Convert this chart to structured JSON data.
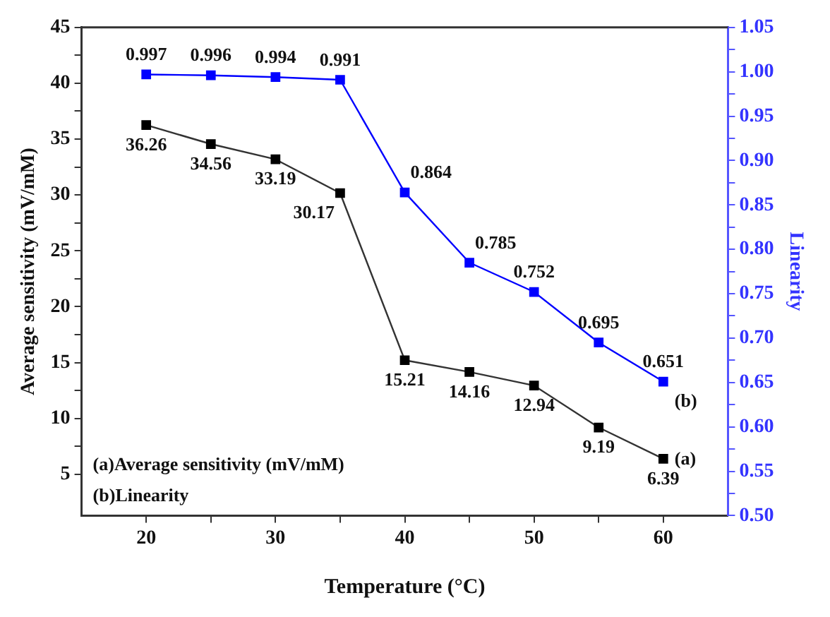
{
  "chart_data": {
    "type": "line",
    "xlabel": "Temperature (°C)",
    "ylabel": "Average sensitivity (mV/mM)",
    "y2label": "Linearity",
    "x": [
      20,
      25,
      30,
      35,
      40,
      45,
      50,
      55,
      60
    ],
    "series": [
      {
        "name": "(a)",
        "color": "#000000",
        "values": [
          36.26,
          34.56,
          33.19,
          30.17,
          15.21,
          14.16,
          12.94,
          9.19,
          6.39
        ]
      },
      {
        "name": "(b)",
        "color": "#0000ff",
        "axis": "y2",
        "values": [
          0.997,
          0.996,
          0.994,
          0.991,
          0.864,
          0.785,
          0.752,
          0.695,
          0.651
        ]
      }
    ],
    "xlim": [
      15,
      65
    ],
    "xticks": [
      20,
      {
        "value": 25,
        "label": null
      },
      30,
      {
        "value": 35,
        "label": null
      },
      40,
      {
        "value": 45,
        "label": null
      },
      50,
      {
        "value": 55,
        "label": null
      },
      60
    ],
    "ylim": [
      1.3,
      45
    ],
    "yticks": [
      5,
      {
        "value": 7.5,
        "label": null
      },
      10,
      {
        "value": 12.5,
        "label": null
      },
      15,
      {
        "value": 17.5,
        "label": null
      },
      20,
      {
        "value": 22.5,
        "label": null
      },
      25,
      {
        "value": 27.5,
        "label": null
      },
      30,
      {
        "value": 32.5,
        "label": null
      },
      35,
      {
        "value": 37.5,
        "label": null
      },
      40,
      {
        "value": 42.5,
        "label": null
      },
      45
    ],
    "y2lim": [
      0.5,
      1.05
    ],
    "y2ticks": [
      "0.50",
      {
        "value": 0.525,
        "label": null
      },
      "0.55",
      {
        "value": 0.575,
        "label": null
      },
      "0.60",
      {
        "value": 0.625,
        "label": null
      },
      "0.65",
      {
        "value": 0.675,
        "label": null
      },
      "0.70",
      {
        "value": 0.725,
        "label": null
      },
      "0.75",
      {
        "value": 0.775,
        "label": null
      },
      "0.80",
      {
        "value": 0.825,
        "label": null
      },
      "0.85",
      {
        "value": 0.875,
        "label": null
      },
      "0.90",
      {
        "value": 0.925,
        "label": null
      },
      "0.95",
      {
        "value": 0.975,
        "label": null
      },
      "1.00",
      {
        "value": 1.025,
        "label": null
      },
      "1.05"
    ],
    "annotations": [
      "(a)Average sensitivity (mV/mM)",
      "(b)Linearity"
    ],
    "data_labels": true,
    "marker": "square",
    "line_style": "solid",
    "grid": false,
    "legend": false
  }
}
